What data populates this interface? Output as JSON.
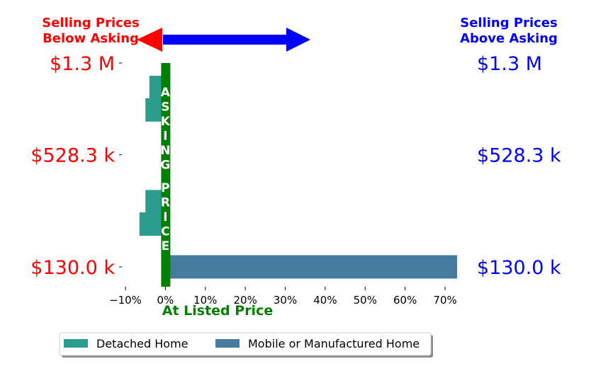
{
  "header": {
    "below_label_line1": "Selling Prices",
    "below_label_line2": "Below Asking",
    "above_label_line1": "Selling Prices",
    "above_label_line2": "Above Asking"
  },
  "colors": {
    "below": "#ff0000",
    "above": "#0000ff",
    "asking": "#008000",
    "detached": "#2a9d8f",
    "mobile": "#457b9d"
  },
  "center_text": "ASKING PRICE",
  "chart_data": {
    "type": "bar",
    "orientation": "horizontal",
    "xlabel": "At Listed Price",
    "xlim": [
      -0.1,
      0.73
    ],
    "xticks": [
      -0.1,
      0,
      0.1,
      0.2,
      0.3,
      0.4,
      0.5,
      0.6,
      0.7
    ],
    "xtick_labels": [
      "−10%",
      "0%",
      "10%",
      "20%",
      "30%",
      "40%",
      "50%",
      "60%",
      "70%"
    ],
    "price_levels": [
      {
        "label": "$1.3 M",
        "position": 1.0
      },
      {
        "label": "$528.3 k",
        "position": 0.55
      },
      {
        "label": "$130.0 k",
        "position": 0.0
      }
    ],
    "series": [
      {
        "name": "Detached Home",
        "bars": [
          {
            "position": 0.88,
            "value": -0.04
          },
          {
            "position": 0.77,
            "value": -0.05
          },
          {
            "position": 0.32,
            "value": -0.05
          },
          {
            "position": 0.21,
            "value": -0.065
          }
        ]
      },
      {
        "name": "Mobile or Manufactured Home",
        "bars": [
          {
            "position": 0.0,
            "value": 0.73
          }
        ]
      }
    ],
    "legend": {
      "placement": "bottom",
      "entries": [
        "Detached Home",
        "Mobile or Manufactured Home"
      ]
    }
  }
}
